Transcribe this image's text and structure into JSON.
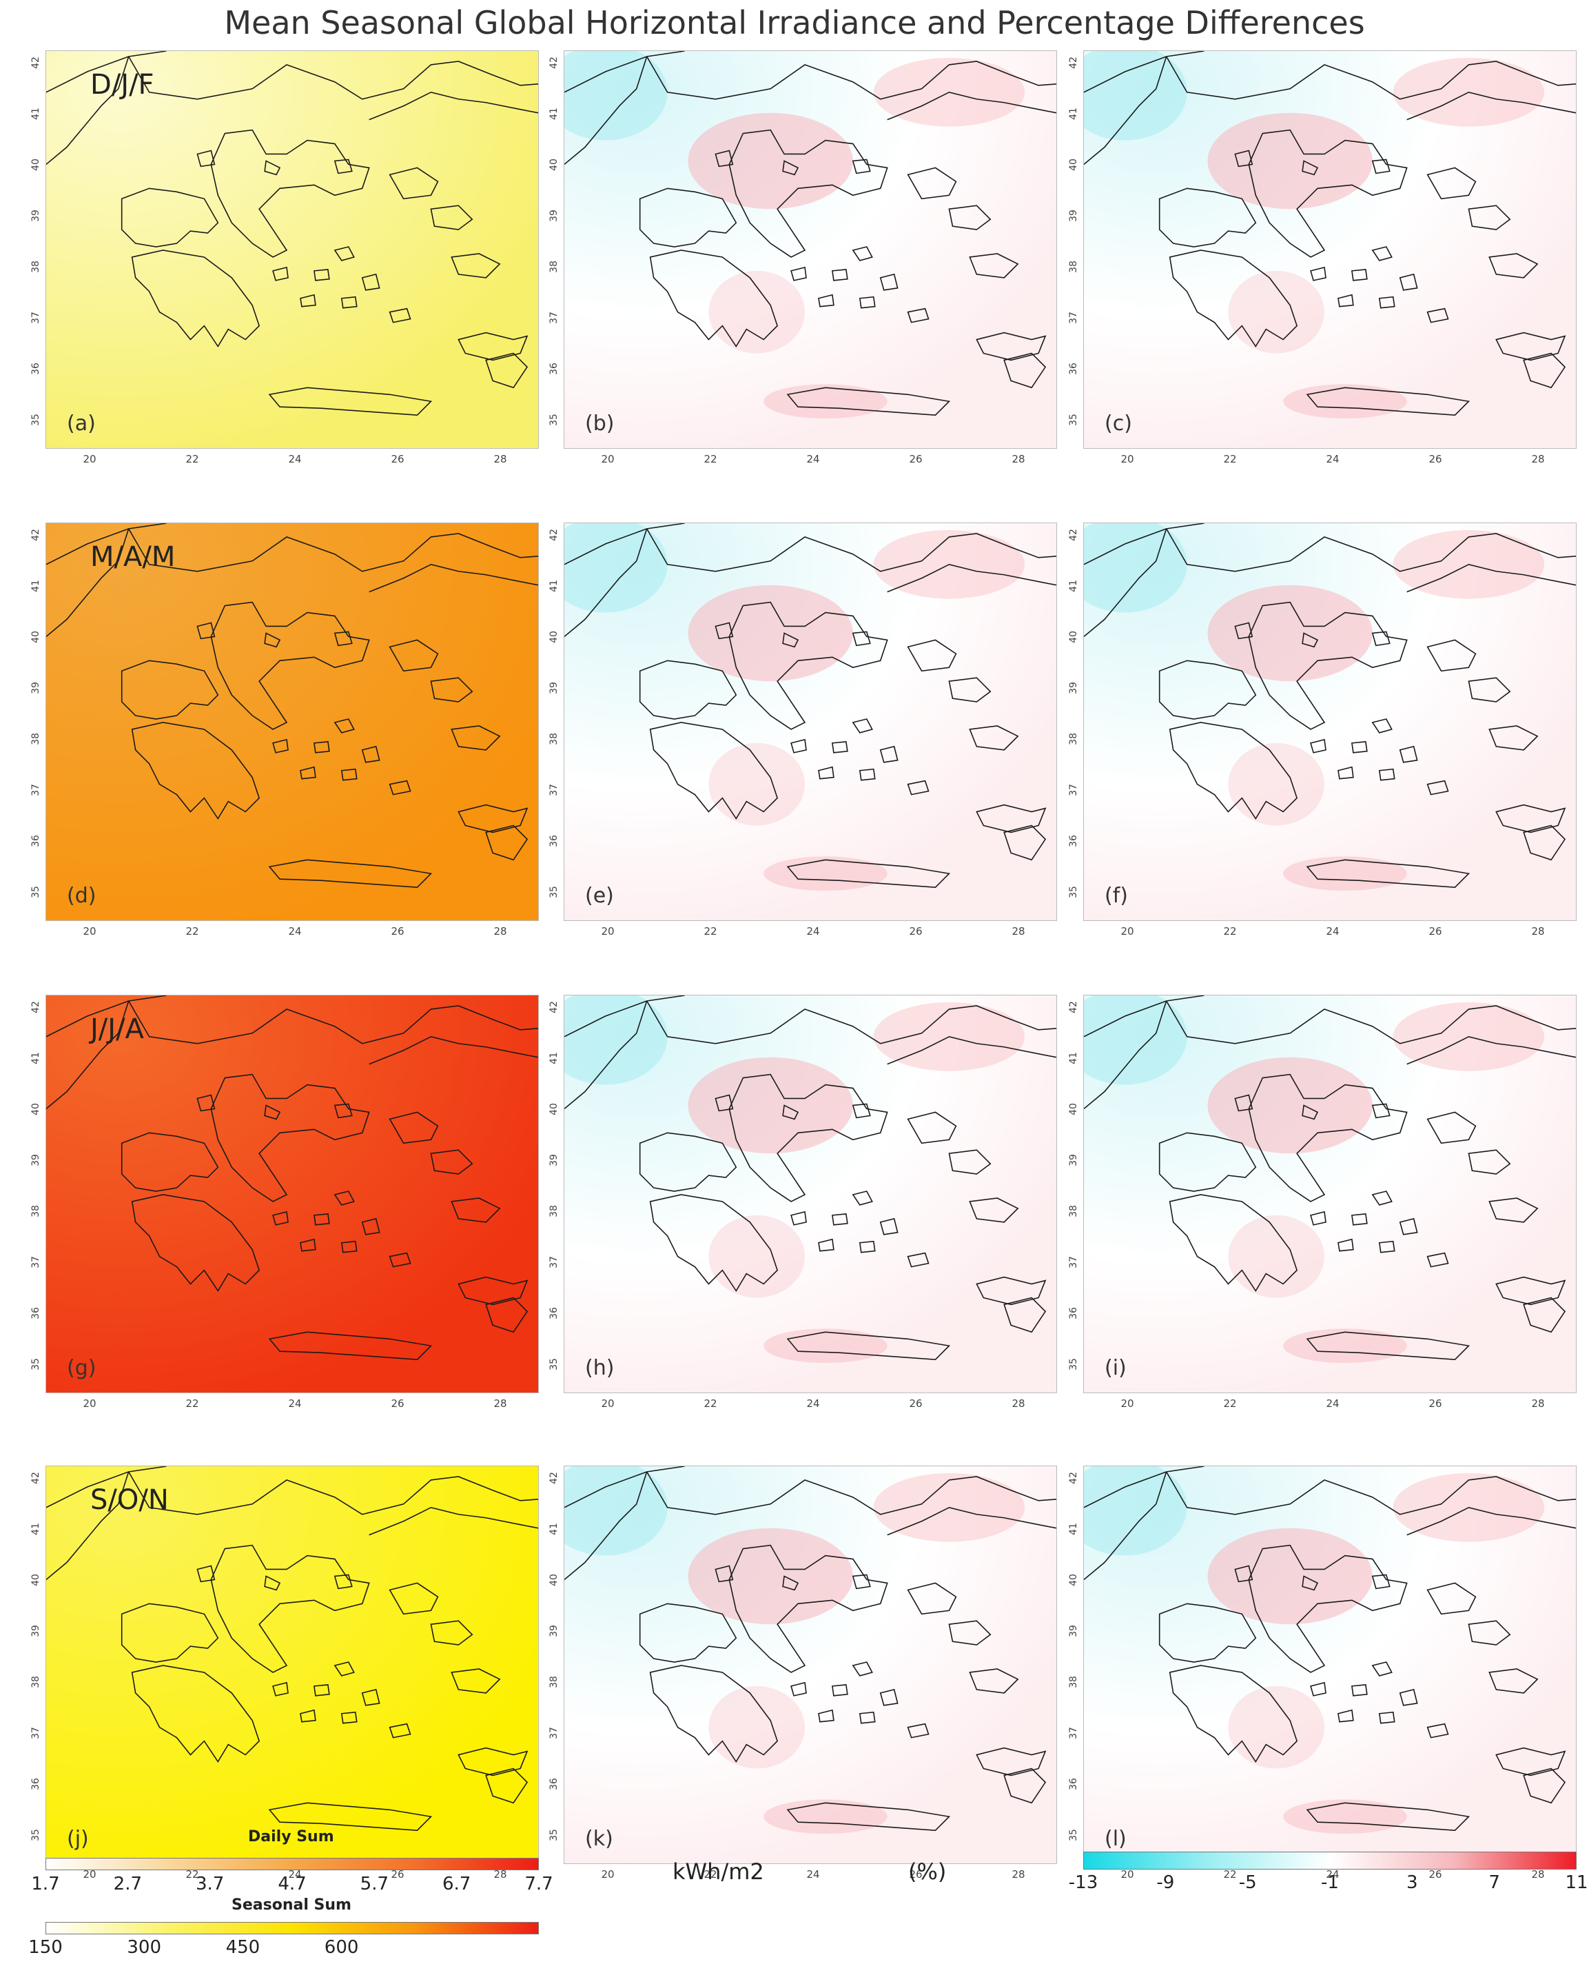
{
  "title": "Mean Seasonal Global Horizontal Irradiance and Percentage Differences",
  "x_ticks": [
    "20",
    "22",
    "24",
    "26",
    "28"
  ],
  "y_ticks": [
    "42",
    "41",
    "40",
    "39",
    "38",
    "37",
    "36",
    "35"
  ],
  "rows": [
    {
      "season": "D/J/F",
      "labels": [
        "(a)",
        "(b)",
        "(c)"
      ],
      "base_color": "#f7f06a",
      "corner_color": "#fdfbd0"
    },
    {
      "season": "M/A/M",
      "labels": [
        "(d)",
        "(e)",
        "(f)"
      ],
      "base_color": "#f7930f",
      "corner_color": "#f3a83a"
    },
    {
      "season": "J/J/A",
      "labels": [
        "(g)",
        "(h)",
        "(i)"
      ],
      "base_color": "#ef3412",
      "corner_color": "#f46a2a"
    },
    {
      "season": "S/O/N",
      "labels": [
        "(j)",
        "(k)",
        "(l)"
      ],
      "base_color": "#fdf100",
      "corner_color": "#fbf35a"
    }
  ],
  "legend_left": {
    "daily_title": "Daily Sum",
    "daily_ticks": [
      "1.7",
      "2.7",
      "3.7",
      "4.7",
      "5.7",
      "6.7",
      "7.7"
    ],
    "seasonal_title": "Seasonal Sum",
    "seasonal_ticks": [
      "150",
      "300",
      "450",
      "600"
    ],
    "daily_gradient": [
      "#ffffff",
      "#f9d89a",
      "#f6a94a",
      "#f3702a",
      "#ee1d16"
    ],
    "seasonal_gradient": [
      "#ffffff",
      "#fbf36a",
      "#fde300",
      "#f7960f",
      "#ee1d16"
    ]
  },
  "legend_mid": {
    "units_kwh": "kWh/m2",
    "units_pct": "(%)"
  },
  "legend_right": {
    "ticks": [
      "-13",
      "-9",
      "-5",
      "-1",
      "3",
      "7",
      "11"
    ],
    "gradient": [
      "#18d8e6",
      "#9aeef2",
      "#ffffff",
      "#f6b8bd",
      "#ee1d26"
    ]
  }
}
